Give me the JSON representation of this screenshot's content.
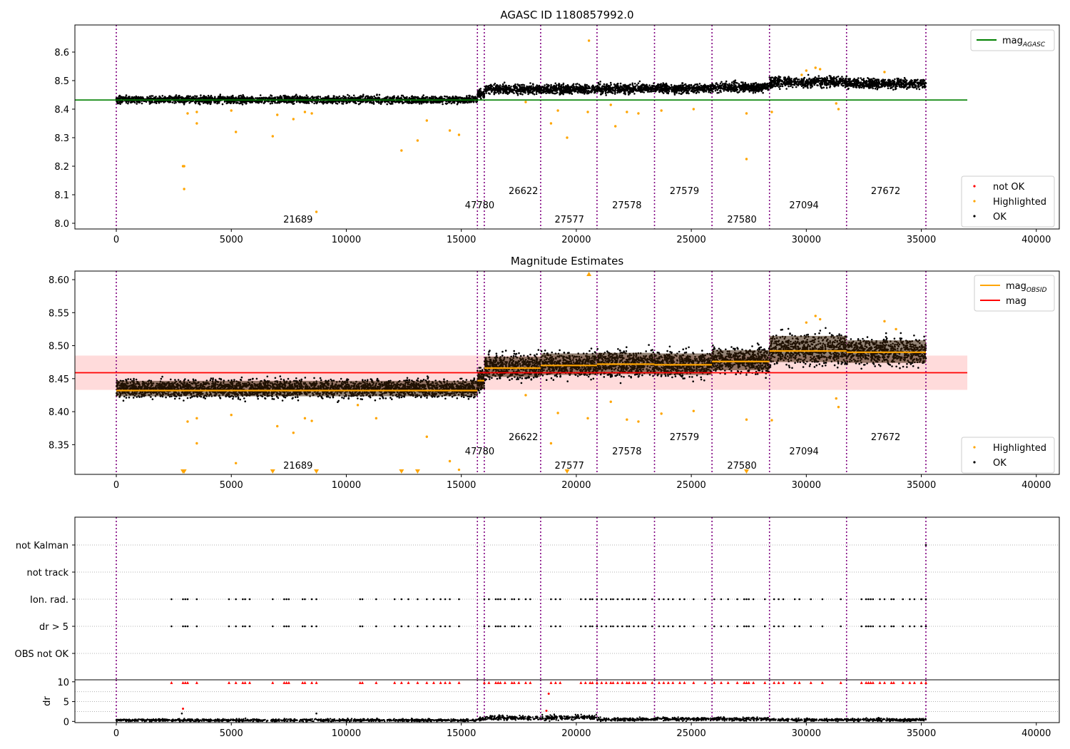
{
  "chart_data": [
    {
      "name": "agasc-panel",
      "type": "scatter",
      "title": "AGASC ID 1180857992.0",
      "xlim": [
        -1800,
        41000
      ],
      "ylim": [
        7.98,
        8.695
      ],
      "xticks": [
        0,
        5000,
        10000,
        15000,
        20000,
        25000,
        30000,
        35000,
        40000
      ],
      "yticks": [
        8.0,
        8.1,
        8.2,
        8.3,
        8.4,
        8.5,
        8.6
      ],
      "ytick_labels": [
        "8.0",
        "8.1",
        "8.2",
        "8.3",
        "8.4",
        "8.5",
        "8.6"
      ],
      "grid": false,
      "ok_bands": [
        {
          "x0": 0,
          "x1": 15700,
          "center": 8.433,
          "halfwidth": 0.012
        },
        {
          "x0": 15700,
          "x1": 16000,
          "center": 8.452,
          "halfwidth": 0.015
        },
        {
          "x0": 16000,
          "x1": 18450,
          "center": 8.47,
          "halfwidth": 0.015
        },
        {
          "x0": 18450,
          "x1": 20900,
          "center": 8.47,
          "halfwidth": 0.016
        },
        {
          "x0": 20900,
          "x1": 23400,
          "center": 8.472,
          "halfwidth": 0.016
        },
        {
          "x0": 23400,
          "x1": 25900,
          "center": 8.472,
          "halfwidth": 0.016
        },
        {
          "x0": 25900,
          "x1": 28400,
          "center": 8.477,
          "halfwidth": 0.016
        },
        {
          "x0": 28400,
          "x1": 31750,
          "center": 8.495,
          "halfwidth": 0.018
        },
        {
          "x0": 31750,
          "x1": 35200,
          "center": 8.49,
          "halfwidth": 0.016
        }
      ],
      "highlighted_points": [
        [
          2900,
          8.2
        ],
        [
          2950,
          8.2
        ],
        [
          2950,
          8.12
        ],
        [
          3100,
          8.385
        ],
        [
          3500,
          8.39
        ],
        [
          3500,
          8.35
        ],
        [
          5200,
          8.32
        ],
        [
          5000,
          8.395
        ],
        [
          6800,
          8.305
        ],
        [
          7000,
          8.38
        ],
        [
          7700,
          8.365
        ],
        [
          8200,
          8.39
        ],
        [
          8500,
          8.385
        ],
        [
          8700,
          8.04
        ],
        [
          12400,
          8.255
        ],
        [
          13100,
          8.29
        ],
        [
          13500,
          8.36
        ],
        [
          14500,
          8.325
        ],
        [
          14900,
          8.31
        ],
        [
          17800,
          8.425
        ],
        [
          18900,
          8.35
        ],
        [
          19200,
          8.395
        ],
        [
          19600,
          8.3
        ],
        [
          20500,
          8.39
        ],
        [
          20550,
          8.64
        ],
        [
          21500,
          8.415
        ],
        [
          21700,
          8.34
        ],
        [
          22200,
          8.39
        ],
        [
          22700,
          8.385
        ],
        [
          23700,
          8.395
        ],
        [
          25100,
          8.4
        ],
        [
          27400,
          8.385
        ],
        [
          27400,
          8.225
        ],
        [
          28500,
          8.39
        ],
        [
          31300,
          8.42
        ],
        [
          31400,
          8.4
        ],
        [
          30400,
          8.545
        ],
        [
          30600,
          8.54
        ],
        [
          30000,
          8.535
        ],
        [
          33400,
          8.53
        ],
        [
          29800,
          8.52
        ]
      ],
      "hlines": [
        {
          "name": "mag_AGASC",
          "y": 8.432,
          "x0": -1800,
          "x1": 37000,
          "color": "#008000"
        }
      ],
      "legends": [
        {
          "items": [
            {
              "kind": "line",
              "label": "mag",
              "sub": "AGASC",
              "color": "#008000"
            }
          ],
          "loc": "upper right"
        },
        {
          "items": [
            {
              "kind": "dot",
              "label": "not OK",
              "color": "#ff0000"
            },
            {
              "kind": "dot",
              "label": "Highlighted",
              "color": "#ffa500"
            },
            {
              "kind": "dot",
              "label": "OK",
              "color": "#000000"
            }
          ],
          "loc": "lower right"
        }
      ]
    },
    {
      "name": "magnitude-panel",
      "type": "scatter",
      "title": "Magnitude Estimates",
      "xlim": [
        -1800,
        41000
      ],
      "ylim": [
        8.305,
        8.613
      ],
      "xticks": [
        0,
        5000,
        10000,
        15000,
        20000,
        25000,
        30000,
        35000,
        40000
      ],
      "yticks": [
        8.35,
        8.4,
        8.45,
        8.5,
        8.55,
        8.6
      ],
      "ytick_labels": [
        "8.35",
        "8.40",
        "8.45",
        "8.50",
        "8.55",
        "8.60"
      ],
      "grid": false,
      "mag_line": {
        "name": "mag",
        "y": 8.459,
        "x0": -1800,
        "x1": 37000,
        "color": "#ff0000"
      },
      "mag_band": {
        "y0": 8.433,
        "y1": 8.485,
        "color": "#ffcccc"
      },
      "ok_bands": [
        {
          "x0": 0,
          "x1": 15700,
          "center": 8.435,
          "halfwidth": 0.013,
          "mag_obsid": 8.432
        },
        {
          "x0": 15700,
          "x1": 16000,
          "center": 8.448,
          "halfwidth": 0.015,
          "mag_obsid": 8.447
        },
        {
          "x0": 16000,
          "x1": 18450,
          "center": 8.468,
          "halfwidth": 0.017,
          "mag_obsid": 8.466
        },
        {
          "x0": 18450,
          "x1": 20900,
          "center": 8.472,
          "halfwidth": 0.018,
          "mag_obsid": 8.47
        },
        {
          "x0": 20900,
          "x1": 23400,
          "center": 8.473,
          "halfwidth": 0.018,
          "mag_obsid": 8.472
        },
        {
          "x0": 23400,
          "x1": 25900,
          "center": 8.472,
          "halfwidth": 0.018,
          "mag_obsid": 8.471
        },
        {
          "x0": 25900,
          "x1": 28400,
          "center": 8.478,
          "halfwidth": 0.017,
          "mag_obsid": 8.476
        },
        {
          "x0": 28400,
          "x1": 31750,
          "center": 8.495,
          "halfwidth": 0.022,
          "mag_obsid": 8.492
        },
        {
          "x0": 31750,
          "x1": 35200,
          "center": 8.491,
          "halfwidth": 0.019,
          "mag_obsid": 8.49
        }
      ],
      "highlighted_points": [
        [
          3100,
          8.385
        ],
        [
          3500,
          8.39
        ],
        [
          3500,
          8.352
        ],
        [
          5000,
          8.395
        ],
        [
          5200,
          8.322
        ],
        [
          7000,
          8.378
        ],
        [
          7700,
          8.368
        ],
        [
          8200,
          8.39
        ],
        [
          8500,
          8.386
        ],
        [
          10500,
          8.41
        ],
        [
          11300,
          8.39
        ],
        [
          13500,
          8.362
        ],
        [
          14500,
          8.325
        ],
        [
          14900,
          8.312
        ],
        [
          17800,
          8.425
        ],
        [
          18900,
          8.352
        ],
        [
          19200,
          8.398
        ],
        [
          20500,
          8.39
        ],
        [
          21500,
          8.415
        ],
        [
          22200,
          8.388
        ],
        [
          22700,
          8.385
        ],
        [
          23700,
          8.397
        ],
        [
          25100,
          8.401
        ],
        [
          27400,
          8.388
        ],
        [
          28500,
          8.387
        ],
        [
          31300,
          8.42
        ],
        [
          31400,
          8.407
        ],
        [
          30400,
          8.545
        ],
        [
          30600,
          8.54
        ],
        [
          30000,
          8.535
        ],
        [
          33400,
          8.537
        ],
        [
          33900,
          8.525
        ]
      ],
      "clipped_markers": [
        2900,
        2950,
        6800,
        8700,
        12400,
        13100,
        19600,
        27400
      ],
      "clipped_top_markers": [
        20550
      ],
      "legend": {
        "items": [
          {
            "kind": "line",
            "label": "mag",
            "sub": "OBSID",
            "color": "#ffa500"
          },
          {
            "kind": "line",
            "label": "mag",
            "color": "#ff0000"
          }
        ],
        "loc": "upper right"
      },
      "legend2": {
        "items": [
          {
            "kind": "dot",
            "label": "Highlighted",
            "color": "#ffa500"
          },
          {
            "kind": "dot",
            "label": "OK",
            "color": "#000000"
          }
        ],
        "loc": "lower right"
      }
    },
    {
      "name": "flags-panel",
      "type": "scatter",
      "xlim": [
        -1800,
        41000
      ],
      "categories": [
        "not Kalman",
        "not track",
        "Ion. rad.",
        "dr > 5",
        "OBS not OK"
      ],
      "flag_rows": {
        "not Kalman": [
          35200
        ],
        "Ion. rad.": [
          2400,
          2900,
          3000,
          3100,
          3500,
          4900,
          5200,
          5500,
          5600,
          5800,
          6800,
          7300,
          7400,
          7500,
          8100,
          8200,
          8500,
          8700,
          10600,
          10700,
          11300,
          12100,
          12400,
          12700,
          13100,
          13500,
          13800,
          14100,
          14300,
          14500,
          14900,
          16000,
          16200,
          16500,
          16600,
          16700,
          16900,
          17200,
          17300,
          17500,
          17800,
          18000,
          18900,
          19100,
          19300,
          20200,
          20400,
          20600,
          20700,
          20900,
          21100,
          21300,
          21500,
          21600,
          21800,
          22000,
          22200,
          22300,
          22500,
          22700,
          22900,
          23000,
          23300,
          23600,
          23800,
          24000,
          24200,
          24500,
          24700,
          25100,
          25600,
          26000,
          26300,
          26600,
          27000,
          27300,
          27400,
          27500,
          27700,
          28200,
          28600,
          28800,
          29000,
          29500,
          29700,
          30200,
          30700,
          31500,
          32400,
          32600,
          32700,
          32800,
          32900,
          33200,
          33400,
          33700,
          33800,
          34200,
          34500,
          34700,
          35000,
          35200
        ],
        "dr > 5": [
          2400,
          2900,
          3000,
          3100,
          3500,
          4900,
          5200,
          5500,
          5600,
          5800,
          6800,
          7300,
          7400,
          7500,
          8100,
          8200,
          8500,
          8700,
          10600,
          10700,
          11300,
          12100,
          12400,
          12700,
          13100,
          13500,
          13800,
          14100,
          14300,
          14500,
          14900,
          16000,
          16200,
          16500,
          16600,
          16700,
          16900,
          17200,
          17300,
          17500,
          17800,
          18000,
          18900,
          19100,
          19300,
          20200,
          20400,
          20600,
          20700,
          20900,
          21100,
          21300,
          21500,
          21600,
          21800,
          22000,
          22200,
          22300,
          22500,
          22700,
          22900,
          23000,
          23300,
          23600,
          23800,
          24000,
          24200,
          24500,
          24700,
          25100,
          25600,
          26000,
          26300,
          26600,
          27000,
          27300,
          27400,
          27500,
          27700,
          28200,
          28600,
          28800,
          29000,
          29500,
          29700,
          30200,
          30700,
          31500,
          32400,
          32600,
          32700,
          32800,
          32900,
          33200,
          33400,
          33700,
          33800,
          34200,
          34500,
          34700,
          35000,
          35200
        ]
      },
      "grid": true
    },
    {
      "name": "dr-panel",
      "type": "scatter",
      "ylabel": "dr",
      "xlim": [
        -1800,
        41000
      ],
      "ylim": [
        -0.3,
        10.5
      ],
      "xticks": [
        0,
        5000,
        10000,
        15000,
        20000,
        25000,
        30000,
        35000,
        40000
      ],
      "yticks": [
        0,
        5,
        10
      ],
      "ytick_labels": [
        "0",
        "5",
        "10"
      ],
      "dr_segments": [
        {
          "x0": 0,
          "x1": 15700,
          "level": 0.3,
          "spread": 0.35
        },
        {
          "x0": 15700,
          "x1": 16000,
          "level": 0.6,
          "spread": 0.4
        },
        {
          "x0": 16000,
          "x1": 18450,
          "level": 0.9,
          "spread": 0.6
        },
        {
          "x0": 18450,
          "x1": 20900,
          "level": 1.0,
          "spread": 0.7
        },
        {
          "x0": 20900,
          "x1": 23400,
          "level": 0.5,
          "spread": 0.4
        },
        {
          "x0": 23400,
          "x1": 25900,
          "level": 0.6,
          "spread": 0.45
        },
        {
          "x0": 25900,
          "x1": 28400,
          "level": 0.6,
          "spread": 0.5
        },
        {
          "x0": 28400,
          "x1": 31750,
          "level": 0.4,
          "spread": 0.35
        },
        {
          "x0": 31750,
          "x1": 35200,
          "level": 0.4,
          "spread": 0.4
        }
      ],
      "clipped_x": [
        2400,
        2900,
        3000,
        3100,
        3500,
        4900,
        5200,
        5500,
        5600,
        5800,
        6800,
        7300,
        7400,
        7500,
        8100,
        8200,
        8500,
        8700,
        10600,
        10700,
        11300,
        12100,
        12400,
        12700,
        13100,
        13500,
        13800,
        14100,
        14300,
        14500,
        14900,
        16000,
        16200,
        16500,
        16600,
        16700,
        16900,
        17200,
        17300,
        17500,
        17800,
        18000,
        18900,
        19100,
        19300,
        20200,
        20400,
        20600,
        20700,
        20900,
        21100,
        21300,
        21500,
        21600,
        21800,
        22000,
        22200,
        22300,
        22500,
        22700,
        22900,
        23000,
        23300,
        23600,
        23800,
        24000,
        24200,
        24500,
        24700,
        25100,
        25600,
        26000,
        26300,
        26600,
        27000,
        27300,
        27400,
        27500,
        27700,
        28200,
        28600,
        28800,
        29000,
        29500,
        29700,
        30200,
        30700,
        31500,
        32400,
        32600,
        32700,
        32800,
        32900,
        33200,
        33400,
        33700,
        33800,
        34200,
        34500,
        34700,
        35000,
        35200
      ],
      "red_extra": [
        [
          2900,
          3.2
        ],
        [
          18800,
          7.0
        ],
        [
          18700,
          2.7
        ]
      ],
      "black_extra": [
        [
          2850,
          2.0
        ],
        [
          8700,
          2.0
        ]
      ]
    }
  ],
  "observations": [
    {
      "obsid": "21689",
      "x": 0,
      "label_x": 7900,
      "tier": 2
    },
    {
      "obsid": "47780",
      "x": 15700,
      "label_x": 15800,
      "tier": 1
    },
    {
      "obsid": "26622",
      "x": 16000,
      "label_x": 17700,
      "tier": 0
    },
    {
      "obsid": "27577",
      "x": 18450,
      "label_x": 19700,
      "tier": 2
    },
    {
      "obsid": "27578",
      "x": 20900,
      "label_x": 22200,
      "tier": 1
    },
    {
      "obsid": "27579",
      "x": 23400,
      "label_x": 24700,
      "tier": 0
    },
    {
      "obsid": "27580",
      "x": 25900,
      "label_x": 27200,
      "tier": 2
    },
    {
      "obsid": "27094",
      "x": 28400,
      "label_x": 29900,
      "tier": 1
    },
    {
      "obsid": "27672",
      "x": 31750,
      "label_x": 33450,
      "tier": 0
    }
  ],
  "end_line": 35200,
  "colors": {
    "ok": "#000000",
    "highlighted": "#ffa500",
    "not_ok": "#ff0000",
    "agasc": "#008000",
    "obsid": "#ffa500",
    "vline": "#800080"
  }
}
